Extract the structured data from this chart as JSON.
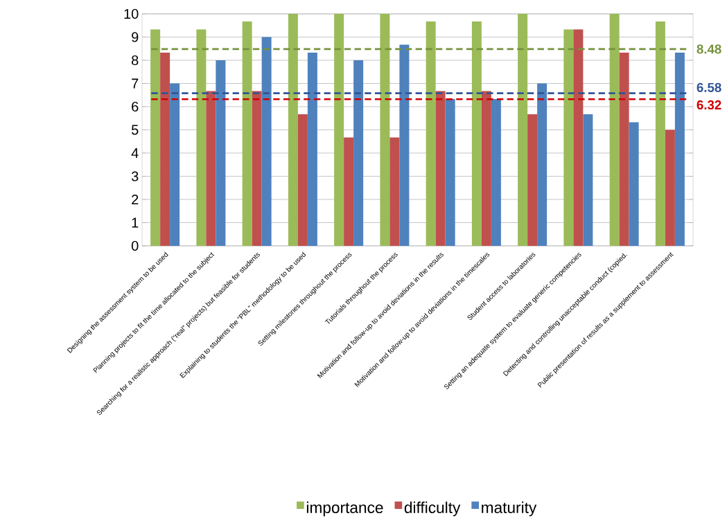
{
  "chart_data": {
    "type": "bar",
    "categories": [
      "Designing the assessment system to be used",
      "Planning projects to fit the time allocated to the subject",
      "Searching for a realistic approach (“real” projects) but feasible for students",
      "Explaining to students the “PBL” methodology to be used",
      "Setting milestones throughout the process",
      "Tutorials throughout the process",
      "Motivation and follow-up to avoid deviations in the results",
      "Motivation and follow-up to avoid deviations in the timescales",
      "Student access to laboratories",
      "Setting an adequate system to evaluate generic competencies",
      "Detecting and controlling unacceptable conduct (copied.",
      "Public presentation of results as a supplement to assessment"
    ],
    "series": [
      {
        "name": "importance",
        "color": "#9bbb59",
        "values": [
          9.33,
          9.33,
          9.67,
          10,
          10,
          10,
          9.67,
          9.67,
          10,
          9.33,
          10,
          9.67
        ]
      },
      {
        "name": "difficulty",
        "color": "#c0504d",
        "values": [
          8.33,
          6.67,
          6.67,
          5.67,
          4.67,
          4.67,
          6.67,
          6.67,
          5.67,
          9.33,
          8.33,
          5.0
        ]
      },
      {
        "name": "maturity",
        "color": "#4f81bd",
        "values": [
          7.0,
          8.0,
          9.0,
          8.33,
          8.0,
          8.67,
          6.33,
          6.33,
          7.0,
          5.67,
          5.33,
          8.33
        ]
      }
    ],
    "ylim": [
      0,
      10
    ],
    "yticks": [
      0,
      1,
      2,
      3,
      4,
      5,
      6,
      7,
      8,
      9,
      10
    ],
    "ref_lines": [
      {
        "axis": "y",
        "value": 8.48,
        "label": "8.48",
        "color": "#76923c",
        "line_style": "dashed"
      },
      {
        "axis": "y",
        "value": 6.58,
        "label": "6.58",
        "color": "#2f5597",
        "line_style": "dashed"
      },
      {
        "axis": "y",
        "value": 6.32,
        "label": "6.32",
        "color": "#d00000",
        "line_style": "dashed"
      }
    ],
    "grid": "y",
    "legend": "bottom"
  }
}
